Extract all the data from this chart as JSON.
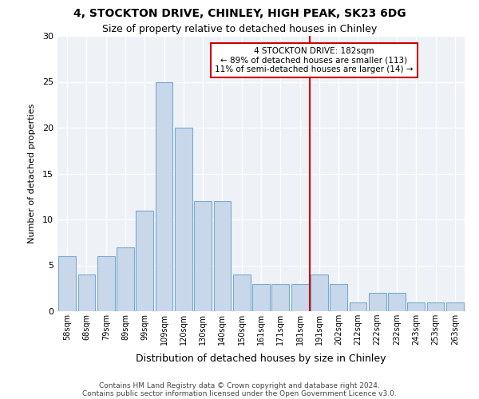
{
  "title1": "4, STOCKTON DRIVE, CHINLEY, HIGH PEAK, SK23 6DG",
  "title2": "Size of property relative to detached houses in Chinley",
  "xlabel": "Distribution of detached houses by size in Chinley",
  "ylabel": "Number of detached properties",
  "categories": [
    "58sqm",
    "68sqm",
    "79sqm",
    "89sqm",
    "99sqm",
    "109sqm",
    "120sqm",
    "130sqm",
    "140sqm",
    "150sqm",
    "161sqm",
    "171sqm",
    "181sqm",
    "191sqm",
    "202sqm",
    "212sqm",
    "222sqm",
    "232sqm",
    "243sqm",
    "253sqm",
    "263sqm"
  ],
  "values": [
    6,
    4,
    6,
    7,
    11,
    25,
    20,
    12,
    12,
    4,
    3,
    3,
    3,
    4,
    3,
    1,
    2,
    2,
    1,
    1,
    1
  ],
  "bar_color": "#c8d8ea",
  "bar_edge_color": "#7aaace",
  "vline_color": "#cc0000",
  "annotation_line1": "4 STOCKTON DRIVE: 182sqm",
  "annotation_line2": "← 89% of detached houses are smaller (113)",
  "annotation_line3": "11% of semi-detached houses are larger (14) →",
  "annotation_box_color": "#ffffff",
  "annotation_box_edge_color": "#cc0000",
  "ylim": [
    0,
    30
  ],
  "yticks": [
    0,
    5,
    10,
    15,
    20,
    25,
    30
  ],
  "footnote1": "Contains HM Land Registry data © Crown copyright and database right 2024.",
  "footnote2": "Contains public sector information licensed under the Open Government Licence v3.0.",
  "bg_color": "#eef2f7",
  "fig_bg_color": "#ffffff"
}
